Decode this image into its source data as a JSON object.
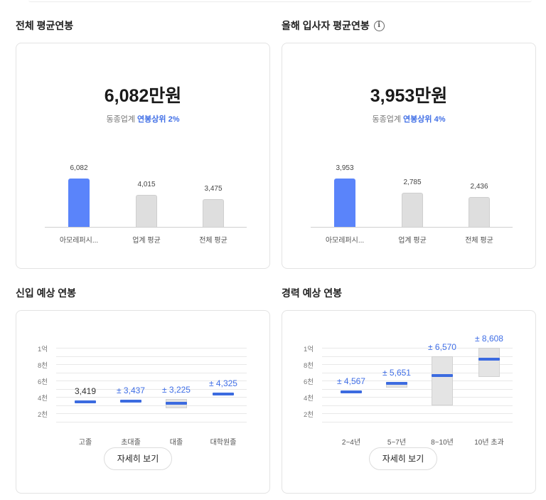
{
  "sections": {
    "overall": {
      "title": "전체 평균연봉",
      "amount": "6,082만원",
      "rank_prefix": "동종업계",
      "rank_highlight": "연봉상위 2%",
      "chart_data": {
        "type": "bar",
        "categories": [
          "아모레퍼시...",
          "업계 평균",
          "전체 평균"
        ],
        "values": [
          6082,
          4015,
          3475
        ],
        "value_labels": [
          "6,082",
          "4,015",
          "3,475"
        ],
        "colors": [
          "#5a84fa",
          "#dedede",
          "#dedede"
        ]
      }
    },
    "new_hire": {
      "title": "올해 입사자 평균연봉",
      "info_icon": "info-icon",
      "amount": "3,953만원",
      "rank_prefix": "동종업계",
      "rank_highlight": "연봉상위 4%",
      "chart_data": {
        "type": "bar",
        "categories": [
          "아모레퍼시...",
          "업계 평균",
          "전체 평균"
        ],
        "values": [
          3953,
          2785,
          2436
        ],
        "value_labels": [
          "3,953",
          "2,785",
          "2,436"
        ],
        "colors": [
          "#5a84fa",
          "#dedede",
          "#dedede"
        ]
      }
    },
    "entry": {
      "title": "신입 예상 연봉",
      "button": "자세히 보기",
      "y_ticks": [
        "1억",
        "8천",
        "6천",
        "4천",
        "2천"
      ],
      "chart_data": {
        "type": "bar",
        "subtype": "range-estimate",
        "ylim": [
          0,
          10000
        ],
        "categories": [
          "고졸",
          "초대졸",
          "대졸",
          "대학원졸"
        ],
        "estimates": [
          3419,
          3437,
          3225,
          4325
        ],
        "labels": [
          "3,419",
          "± 3,437",
          "± 3,225",
          "± 4,325"
        ],
        "ranges": [
          null,
          null,
          [
            2600,
            3700
          ],
          null
        ]
      }
    },
    "career": {
      "title": "경력 예상 연봉",
      "button": "자세히 보기",
      "y_ticks": [
        "1억",
        "8천",
        "6천",
        "4천",
        "2천"
      ],
      "chart_data": {
        "type": "bar",
        "subtype": "range-estimate",
        "ylim": [
          0,
          10000
        ],
        "categories": [
          "2~4년",
          "5~7년",
          "8~10년",
          "10년 초과"
        ],
        "estimates": [
          4567,
          5651,
          6570,
          8608
        ],
        "labels": [
          "± 4,567",
          "± 5,651",
          "± 6,570",
          "± 8,608"
        ],
        "ranges": [
          null,
          [
            5100,
            5800
          ],
          [
            3000,
            9000
          ],
          [
            6400,
            10000
          ]
        ]
      }
    }
  }
}
